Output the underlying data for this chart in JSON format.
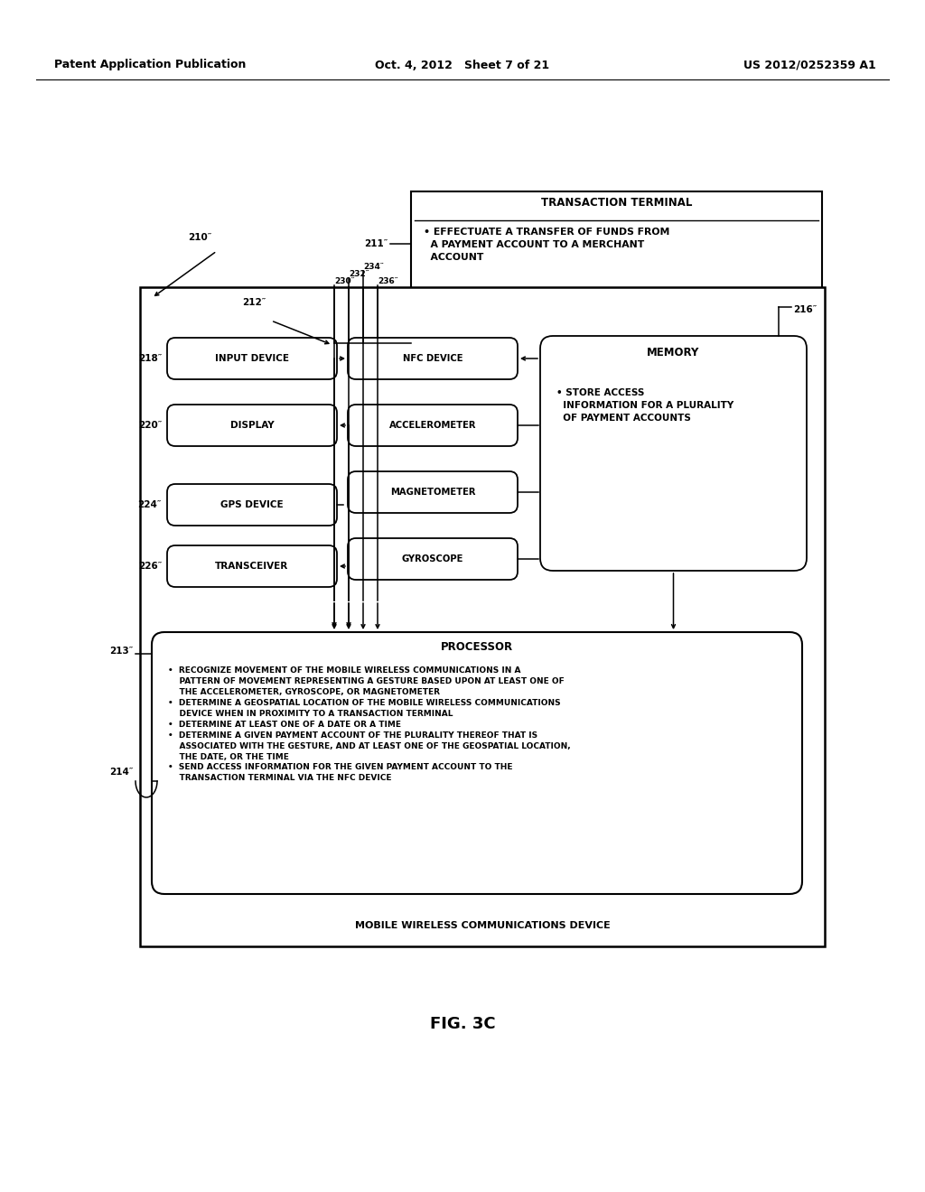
{
  "header_left": "Patent Application Publication",
  "header_mid": "Oct. 4, 2012   Sheet 7 of 21",
  "header_right": "US 2012/0252359 A1",
  "fig_label": "FIG. 3C",
  "label_210": "210″",
  "label_211": "211″",
  "label_212": "212″",
  "label_213": "213″",
  "label_214": "214″",
  "label_216": "216″",
  "label_218": "218″",
  "label_220": "220″",
  "label_224": "224″",
  "label_226": "226″",
  "label_230": "230″",
  "label_232": "232″",
  "label_234": "234″",
  "label_236": "236″",
  "tt_title": "TRANSACTION TERMINAL",
  "tt_bullet": "• EFFECTUATE A TRANSFER OF FUNDS FROM\n  A PAYMENT ACCOUNT TO A MERCHANT\n  ACCOUNT",
  "mem_title": "MEMORY",
  "mem_bullet": "• STORE ACCESS\n  INFORMATION FOR A PLURALITY\n  OF PAYMENT ACCOUNTS",
  "proc_title": "PROCESSOR",
  "proc_bullet1": "•  RECOGNIZE MOVEMENT OF THE MOBILE WIRELESS COMMUNICATIONS IN A\n    PATTERN OF MOVEMENT REPRESENTING A GESTURE BASED UPON AT LEAST ONE OF\n    THE ACCELEROMETER, GYROSCOPE, OR MAGNETOMETER",
  "proc_bullet2": "•  DETERMINE A GEOSPATIAL LOCATION OF THE MOBILE WIRELESS COMMUNICATIONS\n    DEVICE WHEN IN PROXIMITY TO A TRANSACTION TERMINAL",
  "proc_bullet3": "•  DETERMINE AT LEAST ONE OF A DATE OR A TIME",
  "proc_bullet4": "•  DETERMINE A GIVEN PAYMENT ACCOUNT OF THE PLURALITY THEREOF THAT IS\n    ASSOCIATED WITH THE GESTURE, AND AT LEAST ONE OF THE GEOSPATIAL LOCATION,\n    THE DATE, OR THE TIME",
  "proc_bullet5": "•  SEND ACCESS INFORMATION FOR THE GIVEN PAYMENT ACCOUNT TO THE\n    TRANSACTION TERMINAL VIA THE NFC DEVICE",
  "mwcd_label": "MOBILE WIRELESS COMMUNICATIONS DEVICE",
  "left_boxes": [
    "INPUT DEVICE",
    "DISPLAY",
    "GPS DEVICE",
    "TRANSCEIVER"
  ],
  "center_boxes": [
    "NFC DEVICE",
    "ACCELEROMETER",
    "MAGNETOMETER",
    "GYROSCOPE"
  ]
}
